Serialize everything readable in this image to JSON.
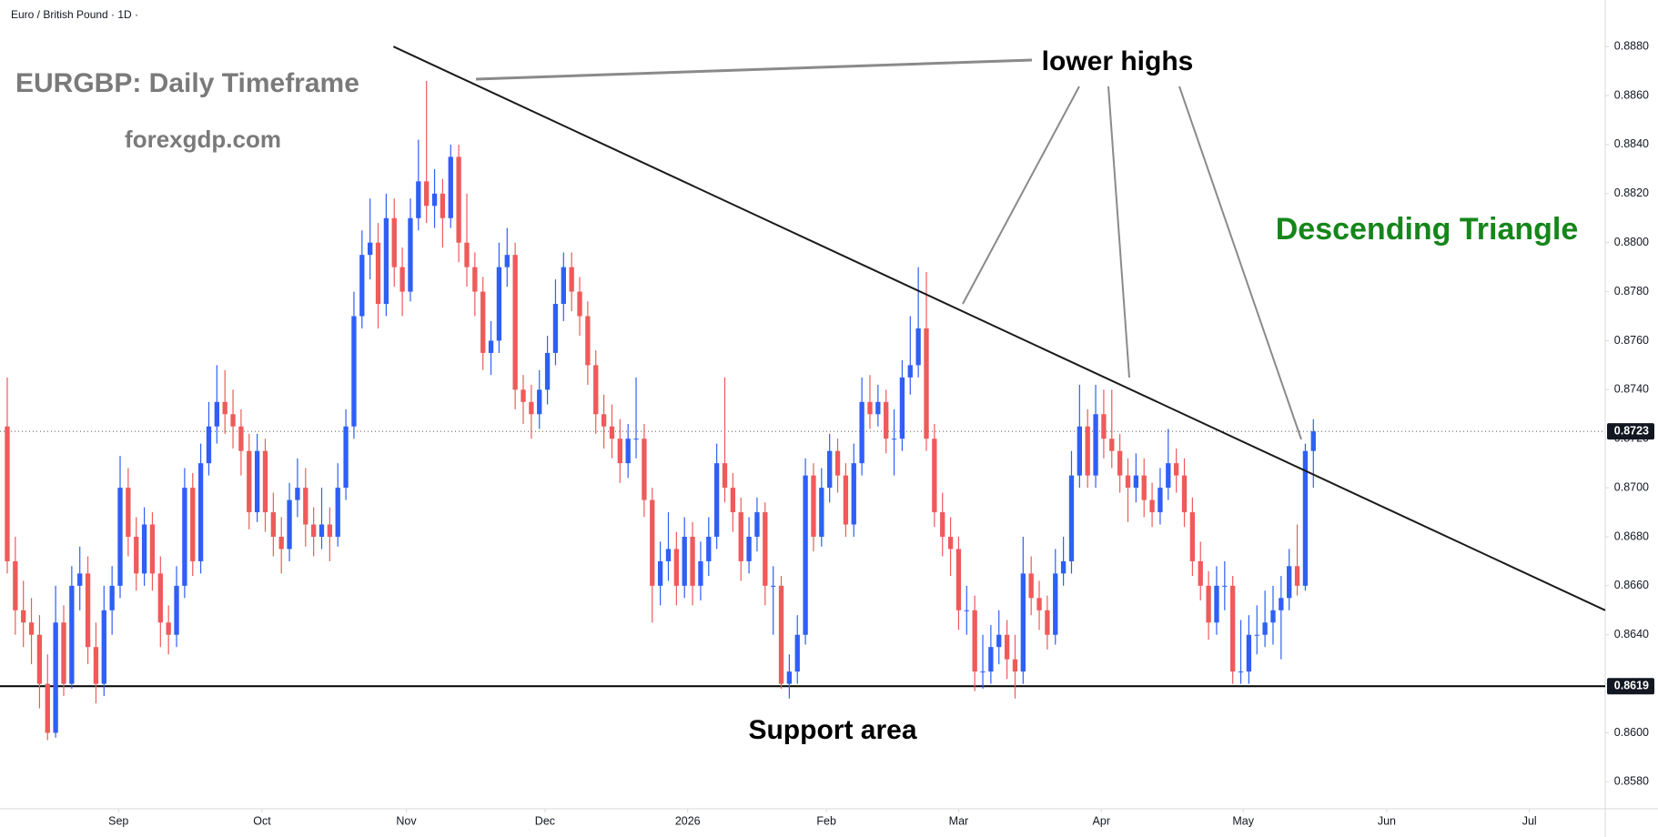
{
  "chart_data": {
    "type": "candlestick",
    "header": "Euro / British Pound · 1D ·",
    "title": "EURGBP: Daily Timeframe",
    "subtitle": "forexgdp.com",
    "pattern_label": "Descending Triangle",
    "annotations": {
      "lower_highs": "lower highs",
      "support": "Support area"
    },
    "up_color": "#2f5ff5",
    "down_color": "#ef5a5a",
    "ylim": [
      0.8569,
      0.8899
    ],
    "yticks": [
      {
        "value": 0.858,
        "label": "0.8580"
      },
      {
        "value": 0.86,
        "label": "0.8600"
      },
      {
        "value": 0.862,
        "label": "0.8620"
      },
      {
        "value": 0.864,
        "label": "0.8640"
      },
      {
        "value": 0.866,
        "label": "0.8660"
      },
      {
        "value": 0.868,
        "label": "0.8680"
      },
      {
        "value": 0.87,
        "label": "0.8700"
      },
      {
        "value": 0.872,
        "label": "0.8720"
      },
      {
        "value": 0.874,
        "label": "0.8740"
      },
      {
        "value": 0.876,
        "label": "0.8760"
      },
      {
        "value": 0.878,
        "label": "0.8780"
      },
      {
        "value": 0.88,
        "label": "0.8800"
      },
      {
        "value": 0.882,
        "label": "0.8820"
      },
      {
        "value": 0.884,
        "label": "0.8840"
      },
      {
        "value": 0.886,
        "label": "0.8860"
      },
      {
        "value": 0.888,
        "label": "0.8880"
      }
    ],
    "xlim": [
      -0.9,
      198.2
    ],
    "xticks": [
      {
        "value": 13.8,
        "label": "Sep"
      },
      {
        "value": 31.6,
        "label": "Oct"
      },
      {
        "value": 49.5,
        "label": "Nov"
      },
      {
        "value": 66.7,
        "label": "Dec"
      },
      {
        "value": 84.4,
        "label": "2026"
      },
      {
        "value": 101.6,
        "label": "Feb"
      },
      {
        "value": 118.0,
        "label": "Mar"
      },
      {
        "value": 135.7,
        "label": "Apr"
      },
      {
        "value": 153.3,
        "label": "May"
      },
      {
        "value": 171.1,
        "label": "Jun"
      },
      {
        "value": 188.8,
        "label": "Jul"
      }
    ],
    "last_price": 0.8723,
    "support_level": 0.8619,
    "trendline": {
      "start": [
        47.9,
        0.888
      ],
      "end": [
        198.2,
        0.865
      ]
    },
    "candles": [
      [
        0.8725,
        0.8745,
        0.8665,
        0.867
      ],
      [
        0.867,
        0.868,
        0.864,
        0.865
      ],
      [
        0.865,
        0.8662,
        0.8635,
        0.8645
      ],
      [
        0.8645,
        0.8655,
        0.8628,
        0.864
      ],
      [
        0.864,
        0.8648,
        0.861,
        0.862
      ],
      [
        0.862,
        0.8632,
        0.8597,
        0.86
      ],
      [
        0.86,
        0.866,
        0.8598,
        0.8645
      ],
      [
        0.8645,
        0.8652,
        0.8615,
        0.862
      ],
      [
        0.862,
        0.8668,
        0.8618,
        0.866
      ],
      [
        0.866,
        0.8676,
        0.865,
        0.8665
      ],
      [
        0.8665,
        0.8672,
        0.8628,
        0.8635
      ],
      [
        0.8635,
        0.8645,
        0.8612,
        0.862
      ],
      [
        0.862,
        0.866,
        0.8615,
        0.865
      ],
      [
        0.865,
        0.8668,
        0.864,
        0.866
      ],
      [
        0.866,
        0.8713,
        0.8655,
        0.87
      ],
      [
        0.87,
        0.8708,
        0.8672,
        0.868
      ],
      [
        0.868,
        0.8688,
        0.8658,
        0.8665
      ],
      [
        0.8665,
        0.8692,
        0.866,
        0.8685
      ],
      [
        0.8685,
        0.869,
        0.8658,
        0.8665
      ],
      [
        0.8665,
        0.8672,
        0.8635,
        0.8645
      ],
      [
        0.8645,
        0.8652,
        0.8632,
        0.864
      ],
      [
        0.864,
        0.8668,
        0.8635,
        0.866
      ],
      [
        0.866,
        0.8708,
        0.8655,
        0.87
      ],
      [
        0.87,
        0.8706,
        0.8664,
        0.867
      ],
      [
        0.867,
        0.8718,
        0.8665,
        0.871
      ],
      [
        0.871,
        0.8735,
        0.8705,
        0.8725
      ],
      [
        0.8725,
        0.875,
        0.8718,
        0.8735
      ],
      [
        0.8735,
        0.8748,
        0.8722,
        0.873
      ],
      [
        0.873,
        0.874,
        0.8716,
        0.8725
      ],
      [
        0.8725,
        0.8732,
        0.8705,
        0.8715
      ],
      [
        0.8715,
        0.8722,
        0.8683,
        0.869
      ],
      [
        0.869,
        0.8722,
        0.8686,
        0.8715
      ],
      [
        0.8715,
        0.872,
        0.8682,
        0.869
      ],
      [
        0.869,
        0.8698,
        0.8672,
        0.868
      ],
      [
        0.868,
        0.8688,
        0.8665,
        0.8675
      ],
      [
        0.8675,
        0.8702,
        0.867,
        0.8695
      ],
      [
        0.8695,
        0.8712,
        0.8688,
        0.87
      ],
      [
        0.87,
        0.8708,
        0.8676,
        0.8685
      ],
      [
        0.8685,
        0.8692,
        0.8672,
        0.868
      ],
      [
        0.868,
        0.87,
        0.8675,
        0.8685
      ],
      [
        0.8685,
        0.8692,
        0.867,
        0.868
      ],
      [
        0.868,
        0.871,
        0.8676,
        0.87
      ],
      [
        0.87,
        0.8732,
        0.8695,
        0.8725
      ],
      [
        0.8725,
        0.878,
        0.872,
        0.877
      ],
      [
        0.877,
        0.8805,
        0.8765,
        0.8795
      ],
      [
        0.8795,
        0.8818,
        0.8785,
        0.88
      ],
      [
        0.88,
        0.8808,
        0.8765,
        0.8775
      ],
      [
        0.8775,
        0.882,
        0.877,
        0.881
      ],
      [
        0.881,
        0.8818,
        0.8782,
        0.879
      ],
      [
        0.879,
        0.8798,
        0.877,
        0.878
      ],
      [
        0.878,
        0.8818,
        0.8776,
        0.881
      ],
      [
        0.881,
        0.8842,
        0.8805,
        0.8825
      ],
      [
        0.8825,
        0.8866,
        0.8808,
        0.8815
      ],
      [
        0.8815,
        0.883,
        0.8806,
        0.882
      ],
      [
        0.882,
        0.8826,
        0.8798,
        0.881
      ],
      [
        0.881,
        0.884,
        0.8806,
        0.8835
      ],
      [
        0.8835,
        0.884,
        0.8792,
        0.88
      ],
      [
        0.88,
        0.882,
        0.8782,
        0.879
      ],
      [
        0.879,
        0.8796,
        0.877,
        0.878
      ],
      [
        0.878,
        0.8786,
        0.8748,
        0.8755
      ],
      [
        0.8755,
        0.8768,
        0.8746,
        0.876
      ],
      [
        0.876,
        0.88,
        0.8755,
        0.879
      ],
      [
        0.879,
        0.8806,
        0.8782,
        0.8795
      ],
      [
        0.8795,
        0.88,
        0.8732,
        0.874
      ],
      [
        0.874,
        0.8746,
        0.8726,
        0.8735
      ],
      [
        0.8735,
        0.8742,
        0.872,
        0.873
      ],
      [
        0.873,
        0.8748,
        0.8724,
        0.874
      ],
      [
        0.874,
        0.8762,
        0.8734,
        0.8755
      ],
      [
        0.8755,
        0.8785,
        0.875,
        0.8775
      ],
      [
        0.8775,
        0.8796,
        0.8768,
        0.879
      ],
      [
        0.879,
        0.8796,
        0.8772,
        0.878
      ],
      [
        0.878,
        0.8786,
        0.8762,
        0.877
      ],
      [
        0.877,
        0.8776,
        0.8742,
        0.875
      ],
      [
        0.875,
        0.8756,
        0.8722,
        0.873
      ],
      [
        0.873,
        0.8738,
        0.8716,
        0.8725
      ],
      [
        0.8725,
        0.8734,
        0.8712,
        0.872
      ],
      [
        0.872,
        0.8728,
        0.8702,
        0.871
      ],
      [
        0.871,
        0.8726,
        0.8704,
        0.872
      ],
      [
        0.872,
        0.8745,
        0.8712,
        0.872
      ],
      [
        0.872,
        0.8726,
        0.8688,
        0.8695
      ],
      [
        0.8695,
        0.87,
        0.8645,
        0.866
      ],
      [
        0.866,
        0.8678,
        0.8652,
        0.867
      ],
      [
        0.867,
        0.869,
        0.8662,
        0.8675
      ],
      [
        0.8675,
        0.8682,
        0.8652,
        0.866
      ],
      [
        0.866,
        0.8688,
        0.8655,
        0.868
      ],
      [
        0.868,
        0.8686,
        0.8652,
        0.866
      ],
      [
        0.866,
        0.8678,
        0.8654,
        0.867
      ],
      [
        0.867,
        0.8688,
        0.8664,
        0.868
      ],
      [
        0.868,
        0.8718,
        0.8675,
        0.871
      ],
      [
        0.871,
        0.8745,
        0.8694,
        0.87
      ],
      [
        0.87,
        0.8706,
        0.8682,
        0.869
      ],
      [
        0.869,
        0.8696,
        0.8662,
        0.867
      ],
      [
        0.867,
        0.8688,
        0.8665,
        0.868
      ],
      [
        0.868,
        0.8696,
        0.8674,
        0.869
      ],
      [
        0.869,
        0.8694,
        0.8652,
        0.866
      ],
      [
        0.866,
        0.8668,
        0.864,
        0.866
      ],
      [
        0.866,
        0.8664,
        0.8618,
        0.862
      ],
      [
        0.862,
        0.8632,
        0.8614,
        0.8625
      ],
      [
        0.8625,
        0.8648,
        0.862,
        0.864
      ],
      [
        0.864,
        0.8712,
        0.8636,
        0.8705
      ],
      [
        0.8705,
        0.871,
        0.8674,
        0.868
      ],
      [
        0.868,
        0.8708,
        0.8676,
        0.87
      ],
      [
        0.87,
        0.8722,
        0.8694,
        0.8715
      ],
      [
        0.8715,
        0.872,
        0.8698,
        0.8705
      ],
      [
        0.8705,
        0.871,
        0.868,
        0.8685
      ],
      [
        0.8685,
        0.8718,
        0.868,
        0.871
      ],
      [
        0.871,
        0.8745,
        0.8705,
        0.8735
      ],
      [
        0.8735,
        0.8746,
        0.8724,
        0.873
      ],
      [
        0.873,
        0.8742,
        0.8725,
        0.8735
      ],
      [
        0.8735,
        0.874,
        0.8714,
        0.872
      ],
      [
        0.872,
        0.8732,
        0.8705,
        0.872
      ],
      [
        0.872,
        0.8752,
        0.8715,
        0.8745
      ],
      [
        0.8745,
        0.877,
        0.8738,
        0.875
      ],
      [
        0.875,
        0.879,
        0.8745,
        0.8765
      ],
      [
        0.8765,
        0.8788,
        0.8715,
        0.872
      ],
      [
        0.872,
        0.8726,
        0.8684,
        0.869
      ],
      [
        0.869,
        0.8698,
        0.8672,
        0.868
      ],
      [
        0.868,
        0.8688,
        0.8664,
        0.8675
      ],
      [
        0.8675,
        0.868,
        0.8642,
        0.865
      ],
      [
        0.865,
        0.866,
        0.864,
        0.865
      ],
      [
        0.865,
        0.8656,
        0.8617,
        0.8625
      ],
      [
        0.8625,
        0.864,
        0.8618,
        0.8625
      ],
      [
        0.8625,
        0.8644,
        0.862,
        0.8635
      ],
      [
        0.8635,
        0.865,
        0.8628,
        0.864
      ],
      [
        0.864,
        0.8646,
        0.8622,
        0.863
      ],
      [
        0.863,
        0.864,
        0.8614,
        0.8625
      ],
      [
        0.8625,
        0.868,
        0.862,
        0.8665
      ],
      [
        0.8665,
        0.8672,
        0.8648,
        0.8655
      ],
      [
        0.8655,
        0.8662,
        0.8642,
        0.865
      ],
      [
        0.865,
        0.8656,
        0.8634,
        0.864
      ],
      [
        0.864,
        0.8675,
        0.8636,
        0.8665
      ],
      [
        0.8665,
        0.868,
        0.866,
        0.867
      ],
      [
        0.867,
        0.8715,
        0.8665,
        0.8705
      ],
      [
        0.8705,
        0.8742,
        0.87,
        0.8725
      ],
      [
        0.8725,
        0.8732,
        0.87,
        0.8705
      ],
      [
        0.8705,
        0.8742,
        0.87,
        0.873
      ],
      [
        0.873,
        0.874,
        0.8712,
        0.872
      ],
      [
        0.872,
        0.874,
        0.8708,
        0.8715
      ],
      [
        0.8715,
        0.8722,
        0.8698,
        0.8705
      ],
      [
        0.8705,
        0.8712,
        0.8686,
        0.87
      ],
      [
        0.87,
        0.8714,
        0.8694,
        0.8705
      ],
      [
        0.8705,
        0.8712,
        0.8688,
        0.8695
      ],
      [
        0.8695,
        0.8702,
        0.8684,
        0.869
      ],
      [
        0.869,
        0.8708,
        0.8685,
        0.87
      ],
      [
        0.87,
        0.8724,
        0.8695,
        0.871
      ],
      [
        0.871,
        0.8716,
        0.8698,
        0.8705
      ],
      [
        0.8705,
        0.8712,
        0.8684,
        0.869
      ],
      [
        0.869,
        0.8696,
        0.8664,
        0.867
      ],
      [
        0.867,
        0.8678,
        0.8654,
        0.866
      ],
      [
        0.866,
        0.8666,
        0.8638,
        0.8645
      ],
      [
        0.8645,
        0.8668,
        0.864,
        0.866
      ],
      [
        0.866,
        0.867,
        0.865,
        0.866
      ],
      [
        0.866,
        0.8664,
        0.862,
        0.8625
      ],
      [
        0.8625,
        0.8646,
        0.862,
        0.8625
      ],
      [
        0.8625,
        0.8648,
        0.862,
        0.864
      ],
      [
        0.864,
        0.8652,
        0.8632,
        0.864
      ],
      [
        0.864,
        0.8658,
        0.8635,
        0.8645
      ],
      [
        0.8645,
        0.866,
        0.8636,
        0.865
      ],
      [
        0.865,
        0.8664,
        0.863,
        0.8655
      ],
      [
        0.8655,
        0.8675,
        0.865,
        0.8668
      ],
      [
        0.8668,
        0.8685,
        0.8656,
        0.866
      ],
      [
        0.866,
        0.8718,
        0.8658,
        0.8715
      ],
      [
        0.8715,
        0.8728,
        0.87,
        0.8723
      ]
    ]
  }
}
